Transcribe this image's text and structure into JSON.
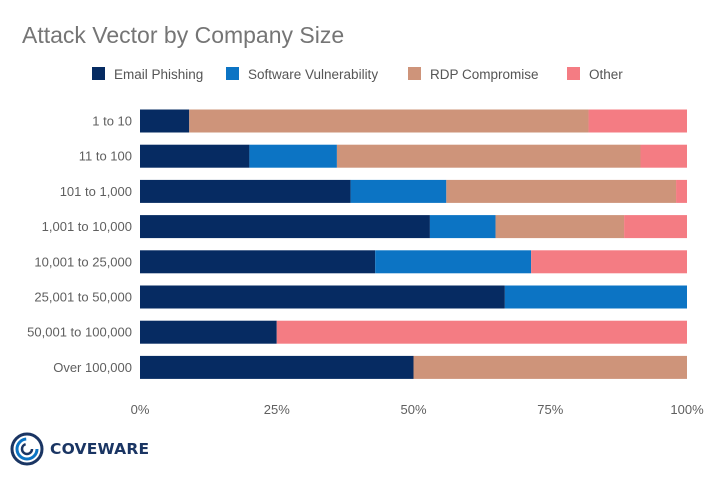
{
  "chart_data": {
    "type": "bar",
    "orientation": "horizontal",
    "stacked": true,
    "title": "Attack Vector by Company Size",
    "categories": [
      "1 to 10",
      "11 to 100",
      "101 to 1,000",
      "1,001 to 10,000",
      "10,001 to 25,000",
      "25,001 to 50,000",
      "50,001 to 100,000",
      "Over 100,000"
    ],
    "series": [
      {
        "name": "Email Phishing",
        "color": "#062b62",
        "values": [
          9,
          20,
          38.5,
          53,
          43,
          66.7,
          25,
          50
        ]
      },
      {
        "name": "Software Vulnerability",
        "color": "#0c74c4",
        "values": [
          0,
          16,
          17.5,
          12,
          28.5,
          33.3,
          0,
          0
        ]
      },
      {
        "name": "RDP Compromise",
        "color": "#ce947a",
        "values": [
          73,
          55.5,
          42,
          23.5,
          0,
          0,
          0,
          50
        ]
      },
      {
        "name": "Other",
        "color": "#f47c83",
        "values": [
          18,
          8.5,
          2,
          11.5,
          28.5,
          0,
          75,
          0
        ]
      }
    ],
    "xaxis": {
      "ticks": [
        "0%",
        "25%",
        "50%",
        "75%",
        "100%"
      ],
      "min": 0,
      "max": 100
    },
    "legend_position": "top",
    "grid": false
  },
  "branding": {
    "logo_text": "COVEWARE",
    "logo_icon": "coveware-ring-icon"
  }
}
